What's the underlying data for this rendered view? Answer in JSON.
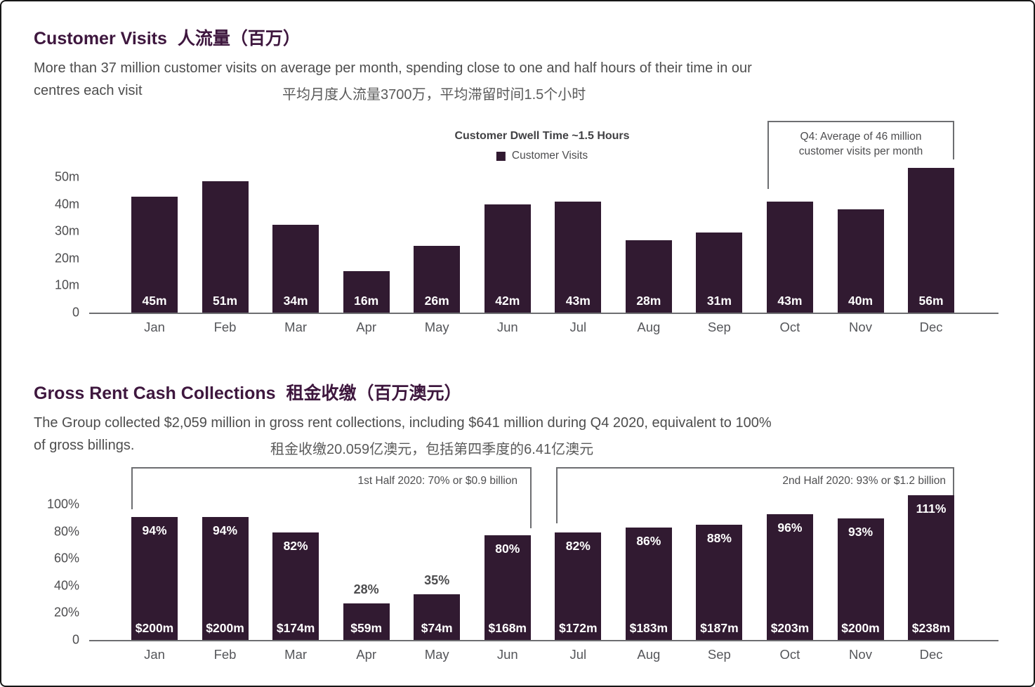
{
  "page": {
    "background": "#ffffff",
    "border_color": "#161616"
  },
  "colors": {
    "bar_fill": "#311a31",
    "heading": "#3e173e",
    "body_text": "#4d4d4d",
    "axis_line": "#6d6e71",
    "axis_text": "#4d4d4f",
    "bar_label_text": "#ffffff",
    "chinese_subtitle": "#5a5a5a"
  },
  "section1": {
    "title_en": "Customer Visits",
    "title_zh": "人流量（百万）",
    "subtitle_line1": "More than 37 million customer visits on average per month, spending close to one and half hours of their time in our",
    "subtitle_line2_en": "centres each visit",
    "subtitle_line2_zh": "平均月度人流量3700万，平均滞留时间1.5个小时"
  },
  "section2": {
    "title_en": "Gross Rent Cash Collections",
    "title_zh": "租金收缴（百万澳元）",
    "subtitle_line1": "The Group collected $2,059 million in gross rent collections, including $641 million during Q4 2020, equivalent to 100%",
    "subtitle_line2_en": "of gross billings.",
    "subtitle_line2_zh": "租金收缴20.059亿澳元，包括第四季度的6.41亿澳元"
  },
  "chart_data": [
    {
      "type": "bar",
      "title": "Customer Visits 人流量（百万）",
      "note": "Customer Dwell Time ~1.5 Hours",
      "legend": [
        "Customer Visits"
      ],
      "legend_position": "top-center",
      "categories": [
        "Jan",
        "Feb",
        "Mar",
        "Apr",
        "May",
        "Jun",
        "Jul",
        "Aug",
        "Sep",
        "Oct",
        "Nov",
        "Dec"
      ],
      "values": [
        45,
        51,
        34,
        16,
        26,
        42,
        43,
        28,
        31,
        43,
        40,
        56
      ],
      "bar_labels": [
        "45m",
        "51m",
        "34m",
        "16m",
        "26m",
        "42m",
        "43m",
        "28m",
        "31m",
        "43m",
        "40m",
        "56m"
      ],
      "unit": "million visits per month",
      "xlabel": "",
      "ylabel": "",
      "yticks": [
        "0",
        "10m",
        "20m",
        "30m",
        "40m",
        "50m"
      ],
      "ylim": [
        0,
        50
      ],
      "grid": false,
      "annotation": {
        "text_line1": "Q4: Average of 46 million",
        "text_line2": "customer visits per month",
        "span": [
          "Oct",
          "Dec"
        ]
      }
    },
    {
      "type": "bar",
      "title": "Gross Rent Cash Collections 租金收缴（百万澳元）",
      "categories": [
        "Jan",
        "Feb",
        "Mar",
        "Apr",
        "May",
        "Jun",
        "Jul",
        "Aug",
        "Sep",
        "Oct",
        "Nov",
        "Dec"
      ],
      "values_percent": [
        94,
        94,
        82,
        28,
        35,
        80,
        82,
        86,
        88,
        96,
        93,
        111
      ],
      "pct_labels": [
        "94%",
        "94%",
        "82%",
        "28%",
        "35%",
        "80%",
        "82%",
        "86%",
        "88%",
        "96%",
        "93%",
        "111%"
      ],
      "amounts_millions": [
        200,
        200,
        174,
        59,
        74,
        168,
        172,
        183,
        187,
        203,
        200,
        238
      ],
      "amount_labels": [
        "$200m",
        "$200m",
        "$174m",
        "$59m",
        "$74m",
        "$168m",
        "$172m",
        "$183m",
        "$187m",
        "$203m",
        "$200m",
        "$238m"
      ],
      "unit": "percent of gross billings / $ millions collected",
      "xlabel": "",
      "ylabel": "",
      "yticks": [
        "0",
        "20%",
        "40%",
        "60%",
        "80%",
        "100%"
      ],
      "ylim": [
        0,
        100
      ],
      "grid": false,
      "annotations": [
        {
          "text": "1st Half 2020: 70% or $0.9 billion",
          "span": [
            "Jan",
            "Jun"
          ]
        },
        {
          "text": "2nd Half 2020: 93% or $1.2 billion",
          "span": [
            "Jul",
            "Dec"
          ]
        }
      ]
    }
  ]
}
